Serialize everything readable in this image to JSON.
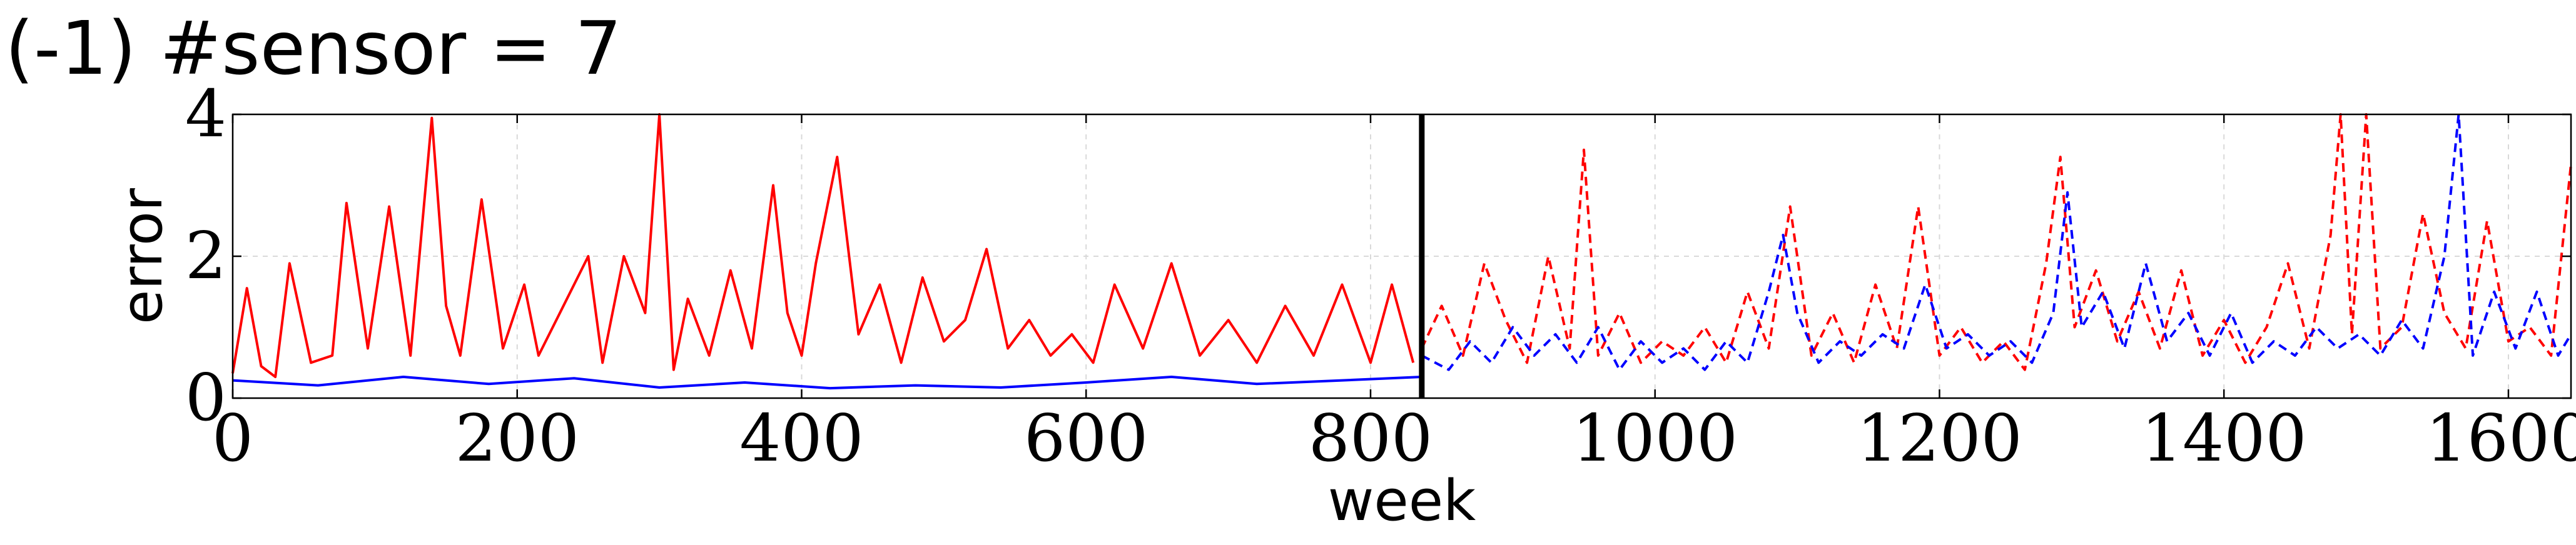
{
  "chart_data": {
    "type": "line",
    "title": "(-1) #sensor = 7",
    "xlabel": "week",
    "ylabel": "error",
    "xlim": [
      0,
      1644
    ],
    "ylim": [
      0,
      4
    ],
    "xticks": [
      0,
      200,
      400,
      600,
      800,
      1000,
      1200,
      1400,
      1600
    ],
    "yticks": [
      0,
      2,
      4
    ],
    "grid": true,
    "legend": "none",
    "split_x": 836,
    "series": [
      {
        "style": "solid",
        "color": "#ff0000",
        "x": [
          0,
          10,
          20,
          30,
          40,
          55,
          70,
          80,
          95,
          110,
          125,
          140,
          150,
          160,
          175,
          190,
          205,
          215,
          230,
          250,
          260,
          275,
          290,
          300,
          310,
          320,
          335,
          350,
          365,
          380,
          390,
          400,
          410,
          425,
          440,
          455,
          470,
          485,
          500,
          515,
          530,
          545,
          560,
          575,
          590,
          605,
          620,
          640,
          660,
          680,
          700,
          720,
          740,
          760,
          780,
          800,
          815,
          830
        ],
        "y": [
          0.35,
          1.55,
          0.45,
          0.3,
          1.9,
          0.5,
          0.6,
          2.75,
          0.7,
          2.7,
          0.6,
          3.95,
          1.3,
          0.6,
          2.8,
          0.7,
          1.6,
          0.6,
          1.2,
          2.0,
          0.5,
          2.0,
          1.2,
          4.0,
          0.4,
          1.4,
          0.6,
          1.8,
          0.7,
          3.0,
          1.2,
          0.6,
          1.9,
          3.4,
          0.9,
          1.6,
          0.5,
          1.7,
          0.8,
          1.1,
          2.1,
          0.7,
          1.1,
          0.6,
          0.9,
          0.5,
          1.6,
          0.7,
          1.9,
          0.6,
          1.1,
          0.5,
          1.3,
          0.6,
          1.6,
          0.5,
          1.6,
          0.5
        ]
      },
      {
        "style": "solid",
        "color": "#0000ff",
        "x": [
          0,
          60,
          120,
          180,
          240,
          300,
          360,
          420,
          480,
          540,
          600,
          660,
          720,
          780,
          836
        ],
        "y": [
          0.25,
          0.18,
          0.3,
          0.2,
          0.28,
          0.15,
          0.22,
          0.14,
          0.18,
          0.15,
          0.22,
          0.3,
          0.2,
          0.25,
          0.3
        ]
      },
      {
        "style": "dashed",
        "color": "#ff0000",
        "x": [
          836,
          850,
          865,
          880,
          895,
          910,
          925,
          940,
          950,
          960,
          975,
          990,
          1005,
          1020,
          1035,
          1050,
          1065,
          1080,
          1095,
          1110,
          1125,
          1140,
          1155,
          1170,
          1185,
          1200,
          1215,
          1230,
          1245,
          1260,
          1275,
          1285,
          1295,
          1310,
          1325,
          1340,
          1355,
          1370,
          1385,
          1400,
          1415,
          1430,
          1445,
          1460,
          1475,
          1482,
          1490,
          1500,
          1510,
          1525,
          1540,
          1555,
          1570,
          1585,
          1600,
          1615,
          1630,
          1644
        ],
        "y": [
          0.7,
          1.3,
          0.6,
          1.9,
          1.1,
          0.5,
          2.0,
          0.7,
          3.5,
          0.6,
          1.2,
          0.5,
          0.8,
          0.6,
          1.0,
          0.5,
          1.5,
          0.7,
          2.7,
          0.6,
          1.2,
          0.5,
          1.6,
          0.7,
          2.7,
          0.6,
          1.0,
          0.5,
          0.8,
          0.4,
          1.9,
          3.4,
          1.0,
          1.8,
          0.8,
          1.5,
          0.7,
          1.8,
          0.6,
          1.1,
          0.5,
          1.0,
          1.9,
          0.7,
          2.3,
          4.0,
          0.9,
          4.0,
          0.7,
          1.0,
          2.6,
          1.2,
          0.7,
          2.5,
          0.8,
          1.0,
          0.6,
          3.3
        ]
      },
      {
        "style": "dashed",
        "color": "#0000ff",
        "x": [
          836,
          855,
          870,
          885,
          900,
          915,
          930,
          945,
          960,
          975,
          990,
          1005,
          1020,
          1035,
          1050,
          1065,
          1080,
          1090,
          1100,
          1115,
          1130,
          1145,
          1160,
          1175,
          1190,
          1205,
          1220,
          1235,
          1250,
          1265,
          1280,
          1290,
          1300,
          1315,
          1330,
          1345,
          1360,
          1375,
          1390,
          1405,
          1420,
          1435,
          1450,
          1465,
          1480,
          1495,
          1510,
          1525,
          1540,
          1555,
          1565,
          1575,
          1590,
          1605,
          1620,
          1635,
          1644
        ],
        "y": [
          0.6,
          0.4,
          0.8,
          0.5,
          1.0,
          0.6,
          0.9,
          0.5,
          1.0,
          0.4,
          0.8,
          0.5,
          0.7,
          0.4,
          0.8,
          0.5,
          1.5,
          2.3,
          1.2,
          0.5,
          0.8,
          0.6,
          0.9,
          0.7,
          1.6,
          0.7,
          0.9,
          0.6,
          0.8,
          0.5,
          1.2,
          2.9,
          1.0,
          1.5,
          0.7,
          1.9,
          0.8,
          1.2,
          0.6,
          1.2,
          0.5,
          0.8,
          0.6,
          1.0,
          0.7,
          0.9,
          0.6,
          1.1,
          0.7,
          2.0,
          4.0,
          0.6,
          1.5,
          0.7,
          1.5,
          0.6,
          0.9
        ]
      }
    ]
  }
}
